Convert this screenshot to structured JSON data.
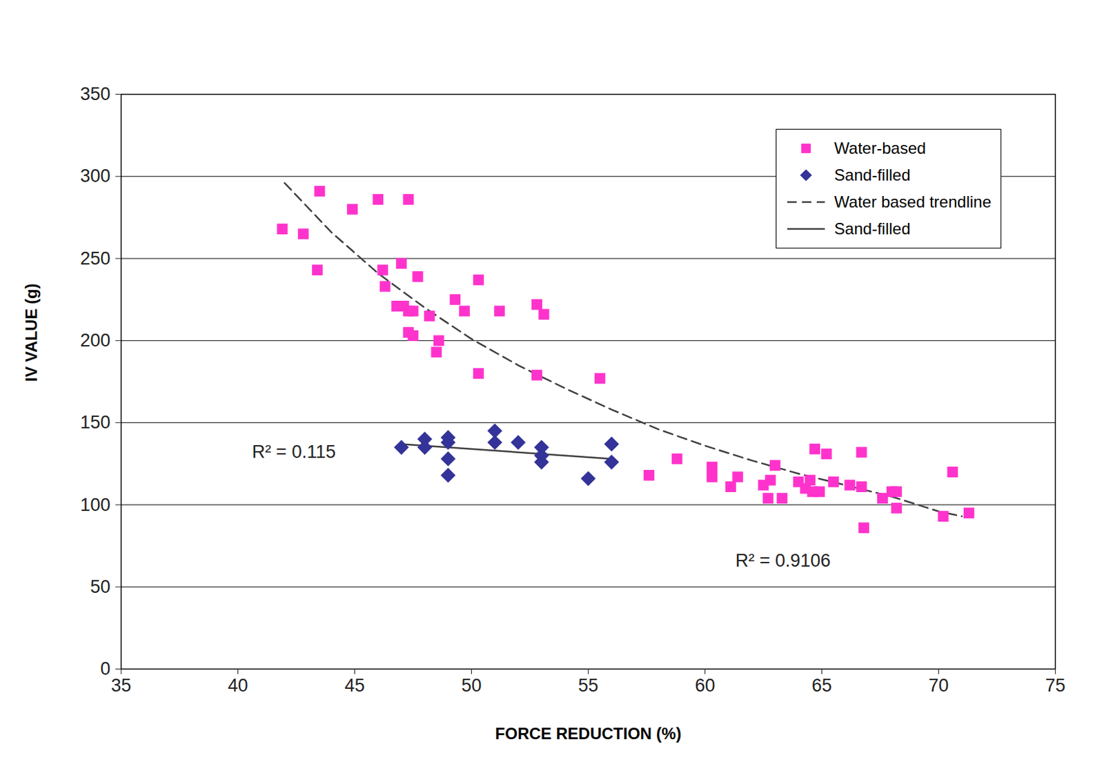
{
  "chart_data": {
    "type": "scatter",
    "x_label": "FORCE REDUCTION (%)",
    "y_label": "IV VALUE (g)",
    "xlim": [
      35,
      75
    ],
    "xticks": [
      35,
      40,
      45,
      50,
      55,
      60,
      65,
      70,
      75
    ],
    "ylim": [
      0,
      350
    ],
    "yticks": [
      0,
      50,
      100,
      150,
      200,
      250,
      300,
      350
    ],
    "grid": true,
    "legend": "upper right",
    "series": [
      {
        "name": "Water-based",
        "type": "scatter",
        "marker": "square",
        "color": "#ff33cc",
        "x": [
          41.9,
          42.8,
          43.5,
          43.4,
          44.9,
          46.0,
          47.3,
          46.2,
          47.0,
          46.3,
          47.7,
          46.8,
          47.1,
          47.3,
          47.5,
          48.2,
          47.3,
          47.5,
          48.6,
          48.5,
          49.3,
          49.7,
          50.3,
          50.3,
          51.2,
          52.8,
          53.1,
          52.8,
          55.5,
          57.6,
          58.8,
          60.3,
          60.3,
          61.4,
          61.1,
          62.5,
          62.8,
          63.0,
          62.7,
          63.3,
          64.0,
          64.5,
          64.3,
          64.6,
          64.9,
          64.7,
          65.2,
          65.5,
          66.2,
          66.7,
          66.7,
          66.8,
          67.6,
          68.0,
          68.2,
          68.2,
          70.2,
          70.6,
          71.3
        ],
        "values": [
          268,
          265,
          291,
          243,
          280,
          286,
          286,
          243,
          247,
          233,
          239,
          221,
          221,
          218,
          218,
          215,
          205,
          203,
          200,
          193,
          225,
          218,
          237,
          180,
          218,
          222,
          216,
          179,
          177,
          118,
          128,
          123,
          117,
          117,
          111,
          112,
          115,
          124,
          104,
          104,
          114,
          115,
          110,
          108,
          108,
          134,
          131,
          114,
          112,
          132,
          111,
          86,
          104,
          108,
          108,
          98,
          93,
          120,
          95
        ]
      },
      {
        "name": "Sand-filled",
        "type": "scatter",
        "marker": "diamond",
        "color": "#333399",
        "x": [
          47.0,
          48.0,
          48.0,
          49.0,
          49.0,
          49.0,
          49.0,
          51.0,
          51.0,
          52.0,
          53.0,
          53.0,
          53.0,
          55.0,
          56.0,
          56.0
        ],
        "values": [
          135,
          140,
          135,
          141,
          138,
          128,
          118,
          145,
          138,
          138,
          135,
          130,
          126,
          116,
          137,
          126
        ]
      },
      {
        "name": "Water based trendline",
        "type": "line",
        "line_style": "dashed",
        "color": "#404040",
        "x": [
          42,
          44,
          46,
          48,
          50,
          52,
          54,
          56,
          58,
          60,
          62,
          64,
          66,
          68,
          70,
          71
        ],
        "values": [
          296,
          266,
          241,
          220,
          201,
          185,
          171,
          158,
          146,
          136,
          127,
          119,
          112,
          105,
          96,
          93
        ]
      },
      {
        "name": "Sand-filled",
        "type": "line",
        "line_style": "solid",
        "color": "#404040",
        "x": [
          47.0,
          56.0
        ],
        "values": [
          137,
          128
        ]
      }
    ],
    "annotations": [
      {
        "text": "R² = 0.115",
        "x": 40.6,
        "y": 132
      },
      {
        "text": "R² = 0.9106",
        "x": 61.3,
        "y": 66
      }
    ]
  }
}
